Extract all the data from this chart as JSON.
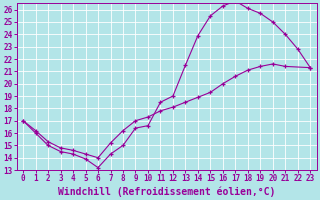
{
  "xlabel": "Windchill (Refroidissement éolien,°C)",
  "line_color": "#990099",
  "bg_color": "#b3e5e8",
  "grid_color": "#ffffff",
  "xlim": [
    -0.5,
    23.5
  ],
  "ylim": [
    13,
    26.5
  ],
  "xticks": [
    0,
    1,
    2,
    3,
    4,
    5,
    6,
    7,
    8,
    9,
    10,
    11,
    12,
    13,
    14,
    15,
    16,
    17,
    18,
    19,
    20,
    21,
    22,
    23
  ],
  "yticks": [
    13,
    14,
    15,
    16,
    17,
    18,
    19,
    20,
    21,
    22,
    23,
    24,
    25,
    26
  ],
  "upper_x": [
    0,
    1,
    2,
    3,
    4,
    5,
    6,
    7,
    8,
    9,
    10,
    11,
    12,
    13,
    14,
    15,
    16,
    17,
    18,
    19,
    20,
    21,
    22,
    23
  ],
  "upper_y": [
    17.0,
    16.0,
    15.0,
    14.5,
    14.3,
    13.9,
    13.2,
    14.3,
    15.0,
    16.4,
    16.6,
    18.5,
    19.0,
    21.5,
    23.9,
    25.5,
    26.3,
    26.7,
    26.1,
    25.7,
    25.0,
    24.0,
    22.8,
    21.3
  ],
  "lower_x": [
    0,
    1,
    2,
    3,
    4,
    5,
    6,
    7,
    8,
    9,
    10,
    11,
    12,
    13,
    14,
    15,
    16,
    17,
    18,
    19,
    20,
    21,
    23
  ],
  "lower_y": [
    17.0,
    16.2,
    15.3,
    14.8,
    14.6,
    14.3,
    14.0,
    15.2,
    16.2,
    17.0,
    17.3,
    17.8,
    18.1,
    18.5,
    18.9,
    19.3,
    20.0,
    20.6,
    21.1,
    21.4,
    21.6,
    21.4,
    21.3
  ],
  "xlabel_fontsize": 7.0,
  "tick_fontsize": 5.5
}
